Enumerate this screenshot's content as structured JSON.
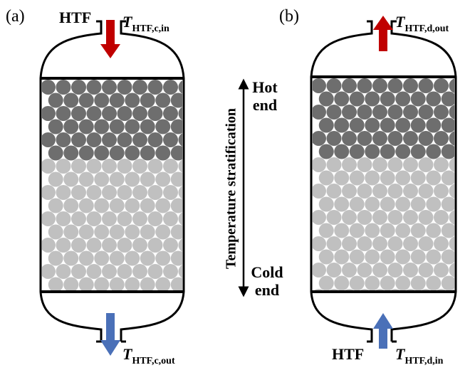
{
  "panels": [
    {
      "label": "(a)",
      "top": {
        "name": "HTF",
        "symbol": "T",
        "subscript": "HTF,c,in"
      },
      "bottom": {
        "symbol": "T",
        "subscript": "HTF,c,out"
      }
    },
    {
      "label": "(b)",
      "top": {
        "symbol": "T",
        "subscript": "HTF,d,out"
      },
      "bottom": {
        "name": "HTF",
        "symbol": "T",
        "subscript": "HTF,d,in"
      }
    }
  ],
  "axis": {
    "label": "Temperature stratification",
    "hot": [
      "Hot",
      "end"
    ],
    "cold": [
      "Cold",
      "end"
    ]
  }
}
